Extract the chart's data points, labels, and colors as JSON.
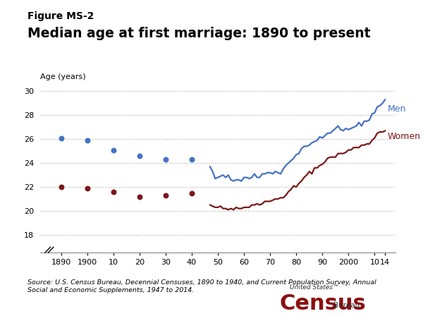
{
  "title_line1": "Figure MS-2",
  "title_line2": "Median age at first marriage: 1890 to present",
  "ylabel": "Age (years)",
  "source_text": "Source: U.S. Census Bureau, Decennial Censuses, 1890 to 1940, and Current Population Survey, Annual\nSocial and Economic Supplements, 1947 to 2014.",
  "men_scatter_x": [
    1890,
    1900,
    1910,
    1920,
    1930,
    1940
  ],
  "men_scatter_y": [
    26.1,
    25.9,
    25.1,
    24.6,
    24.3,
    24.3
  ],
  "women_scatter_x": [
    1890,
    1900,
    1910,
    1920,
    1930,
    1940
  ],
  "women_scatter_y": [
    22.0,
    21.9,
    21.6,
    21.2,
    21.3,
    21.5
  ],
  "men_line_x": [
    1947,
    1948,
    1949,
    1950,
    1951,
    1952,
    1953,
    1954,
    1955,
    1956,
    1957,
    1958,
    1959,
    1960,
    1961,
    1962,
    1963,
    1964,
    1965,
    1966,
    1967,
    1968,
    1969,
    1970,
    1971,
    1972,
    1973,
    1974,
    1975,
    1976,
    1977,
    1978,
    1979,
    1980,
    1981,
    1982,
    1983,
    1984,
    1985,
    1986,
    1987,
    1988,
    1989,
    1990,
    1991,
    1992,
    1993,
    1994,
    1995,
    1996,
    1997,
    1998,
    1999,
    2000,
    2001,
    2002,
    2003,
    2004,
    2005,
    2006,
    2007,
    2008,
    2009,
    2010,
    2011,
    2012,
    2013,
    2014
  ],
  "men_line_y": [
    23.7,
    23.3,
    22.7,
    22.8,
    22.9,
    23.0,
    22.8,
    23.0,
    22.6,
    22.5,
    22.6,
    22.6,
    22.5,
    22.8,
    22.8,
    22.7,
    22.8,
    23.1,
    22.8,
    22.8,
    23.1,
    23.1,
    23.2,
    23.2,
    23.1,
    23.3,
    23.2,
    23.1,
    23.5,
    23.8,
    24.0,
    24.2,
    24.4,
    24.7,
    24.8,
    25.2,
    25.4,
    25.4,
    25.5,
    25.7,
    25.8,
    25.9,
    26.2,
    26.1,
    26.3,
    26.5,
    26.5,
    26.7,
    26.9,
    27.1,
    26.8,
    26.7,
    26.9,
    26.8,
    26.9,
    27.0,
    27.1,
    27.4,
    27.1,
    27.5,
    27.5,
    27.6,
    28.1,
    28.2,
    28.7,
    28.8,
    29.0,
    29.3
  ],
  "women_line_x": [
    1947,
    1948,
    1949,
    1950,
    1951,
    1952,
    1953,
    1954,
    1955,
    1956,
    1957,
    1958,
    1959,
    1960,
    1961,
    1962,
    1963,
    1964,
    1965,
    1966,
    1967,
    1968,
    1969,
    1970,
    1971,
    1972,
    1973,
    1974,
    1975,
    1976,
    1977,
    1978,
    1979,
    1980,
    1981,
    1982,
    1983,
    1984,
    1985,
    1986,
    1987,
    1988,
    1989,
    1990,
    1991,
    1992,
    1993,
    1994,
    1995,
    1996,
    1997,
    1998,
    1999,
    2000,
    2001,
    2002,
    2003,
    2004,
    2005,
    2006,
    2007,
    2008,
    2009,
    2010,
    2011,
    2012,
    2013,
    2014
  ],
  "women_line_y": [
    20.5,
    20.4,
    20.3,
    20.3,
    20.4,
    20.2,
    20.2,
    20.1,
    20.2,
    20.1,
    20.3,
    20.2,
    20.2,
    20.3,
    20.3,
    20.3,
    20.5,
    20.5,
    20.6,
    20.5,
    20.6,
    20.8,
    20.8,
    20.8,
    20.9,
    21.0,
    21.0,
    21.1,
    21.1,
    21.3,
    21.6,
    21.8,
    22.1,
    22.0,
    22.3,
    22.5,
    22.8,
    23.0,
    23.3,
    23.1,
    23.6,
    23.6,
    23.8,
    23.9,
    24.1,
    24.4,
    24.5,
    24.5,
    24.5,
    24.8,
    24.8,
    24.8,
    24.9,
    25.1,
    25.1,
    25.3,
    25.3,
    25.3,
    25.5,
    25.5,
    25.6,
    25.6,
    25.9,
    26.1,
    26.5,
    26.6,
    26.6,
    26.7
  ],
  "men_color": "#4472C4",
  "women_color": "#7B1818",
  "background_color": "#FFFFFF",
  "ylim": [
    16.5,
    30.5
  ],
  "yticks": [
    18,
    20,
    22,
    24,
    26,
    28,
    30
  ],
  "xlim_left": 1882,
  "xlim_right": 2018,
  "xlabel_ticks": [
    1890,
    1900,
    1910,
    1920,
    1930,
    1940,
    1950,
    1960,
    1970,
    1980,
    1990,
    2000,
    2010,
    2014
  ],
  "xlabel_labels": [
    "1890",
    "1900",
    "10",
    "20",
    "30",
    "40",
    "50",
    "60",
    "70",
    "80",
    "90",
    "2000",
    "10",
    "14"
  ]
}
